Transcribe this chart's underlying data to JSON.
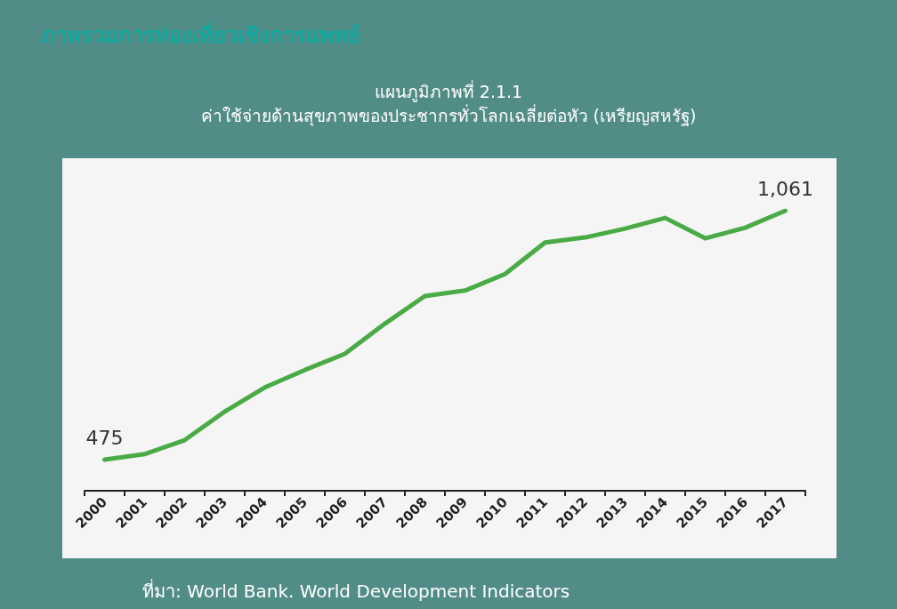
{
  "chart_data": {
    "type": "line",
    "title": "แผนภูมิภาพที่ 2.1.1",
    "subtitle": "ค่าใช้จ่ายด้านสุขภาพของประชากรทั่วโลกเฉลี่ยต่อหัว (เหรียญสหรัฐ)",
    "annotations": [
      "ภาพรวมการท่องเที่ยวเชิงการแพทย์",
      "ที่มา: World Bank. World Development Indicators"
    ],
    "categories": [
      "2000",
      "2001",
      "2002",
      "2003",
      "2004",
      "2005",
      "2006",
      "2007",
      "2008",
      "2009",
      "2010",
      "2011",
      "2012",
      "2013",
      "2014",
      "2015",
      "2016",
      "2017"
    ],
    "tick_labels": "x",
    "color": "#4aab46",
    "marker": "none",
    "line_style": "solid",
    "grid": false,
    "values": [
      475,
      488,
      521,
      588,
      645,
      686,
      724,
      795,
      860,
      873,
      912,
      986,
      998,
      1019,
      1044,
      996,
      1021,
      1061
    ],
    "value_labels": [
      "475",
      null,
      null,
      null,
      null,
      null,
      null,
      null,
      null,
      null,
      null,
      null,
      null,
      null,
      null,
      null,
      null,
      "1,061"
    ]
  }
}
